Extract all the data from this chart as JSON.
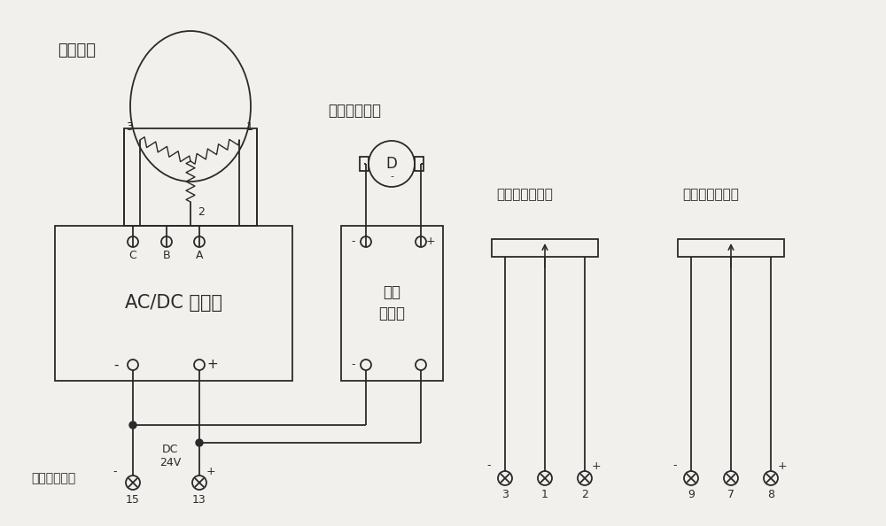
{
  "bg_color": "#f2f0ed",
  "line_color": "#2a2a2a",
  "labels": {
    "gyro_motor": "陌螺马达",
    "fast_motor": "快速扶正电机",
    "inverter": "AC/DC 逆变器",
    "ctrl1": "控制",
    "ctrl2": "电源板",
    "lateral_pot": "横向输出电位计",
    "vertical_pot": "纵向输出电位计",
    "socket_label": "插座端子序号",
    "dc_label": "DC\n24V"
  }
}
